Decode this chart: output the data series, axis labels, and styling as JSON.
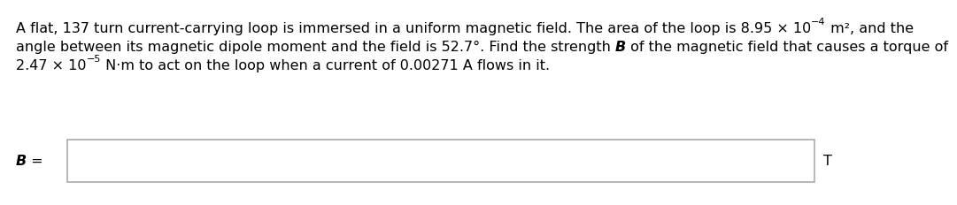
{
  "bg_color": "#ffffff",
  "text_color": "#000000",
  "box_edge_color": "#aaaaaa",
  "font_size": 11.5,
  "font_size_sup": 8,
  "line1_a": "A flat, 137 turn current-carrying loop is immersed in a uniform magnetic field. The area of the loop is 8.95 × 10",
  "line1_sup": "−4",
  "line1_b": " m², and the",
  "line2_a": "angle between its magnetic dipole moment and the field is 52.7°. Find the strength ",
  "line2_bold": "B",
  "line2_b": " of the magnetic field that causes a torque of",
  "line3_a": "2.47 × 10",
  "line3_sup": "−5",
  "line3_b": " N·m to act on the loop when a current of 0.00271 A flows in it.",
  "label_b_italic": "B",
  "label_eq": " =",
  "label_t": "T"
}
